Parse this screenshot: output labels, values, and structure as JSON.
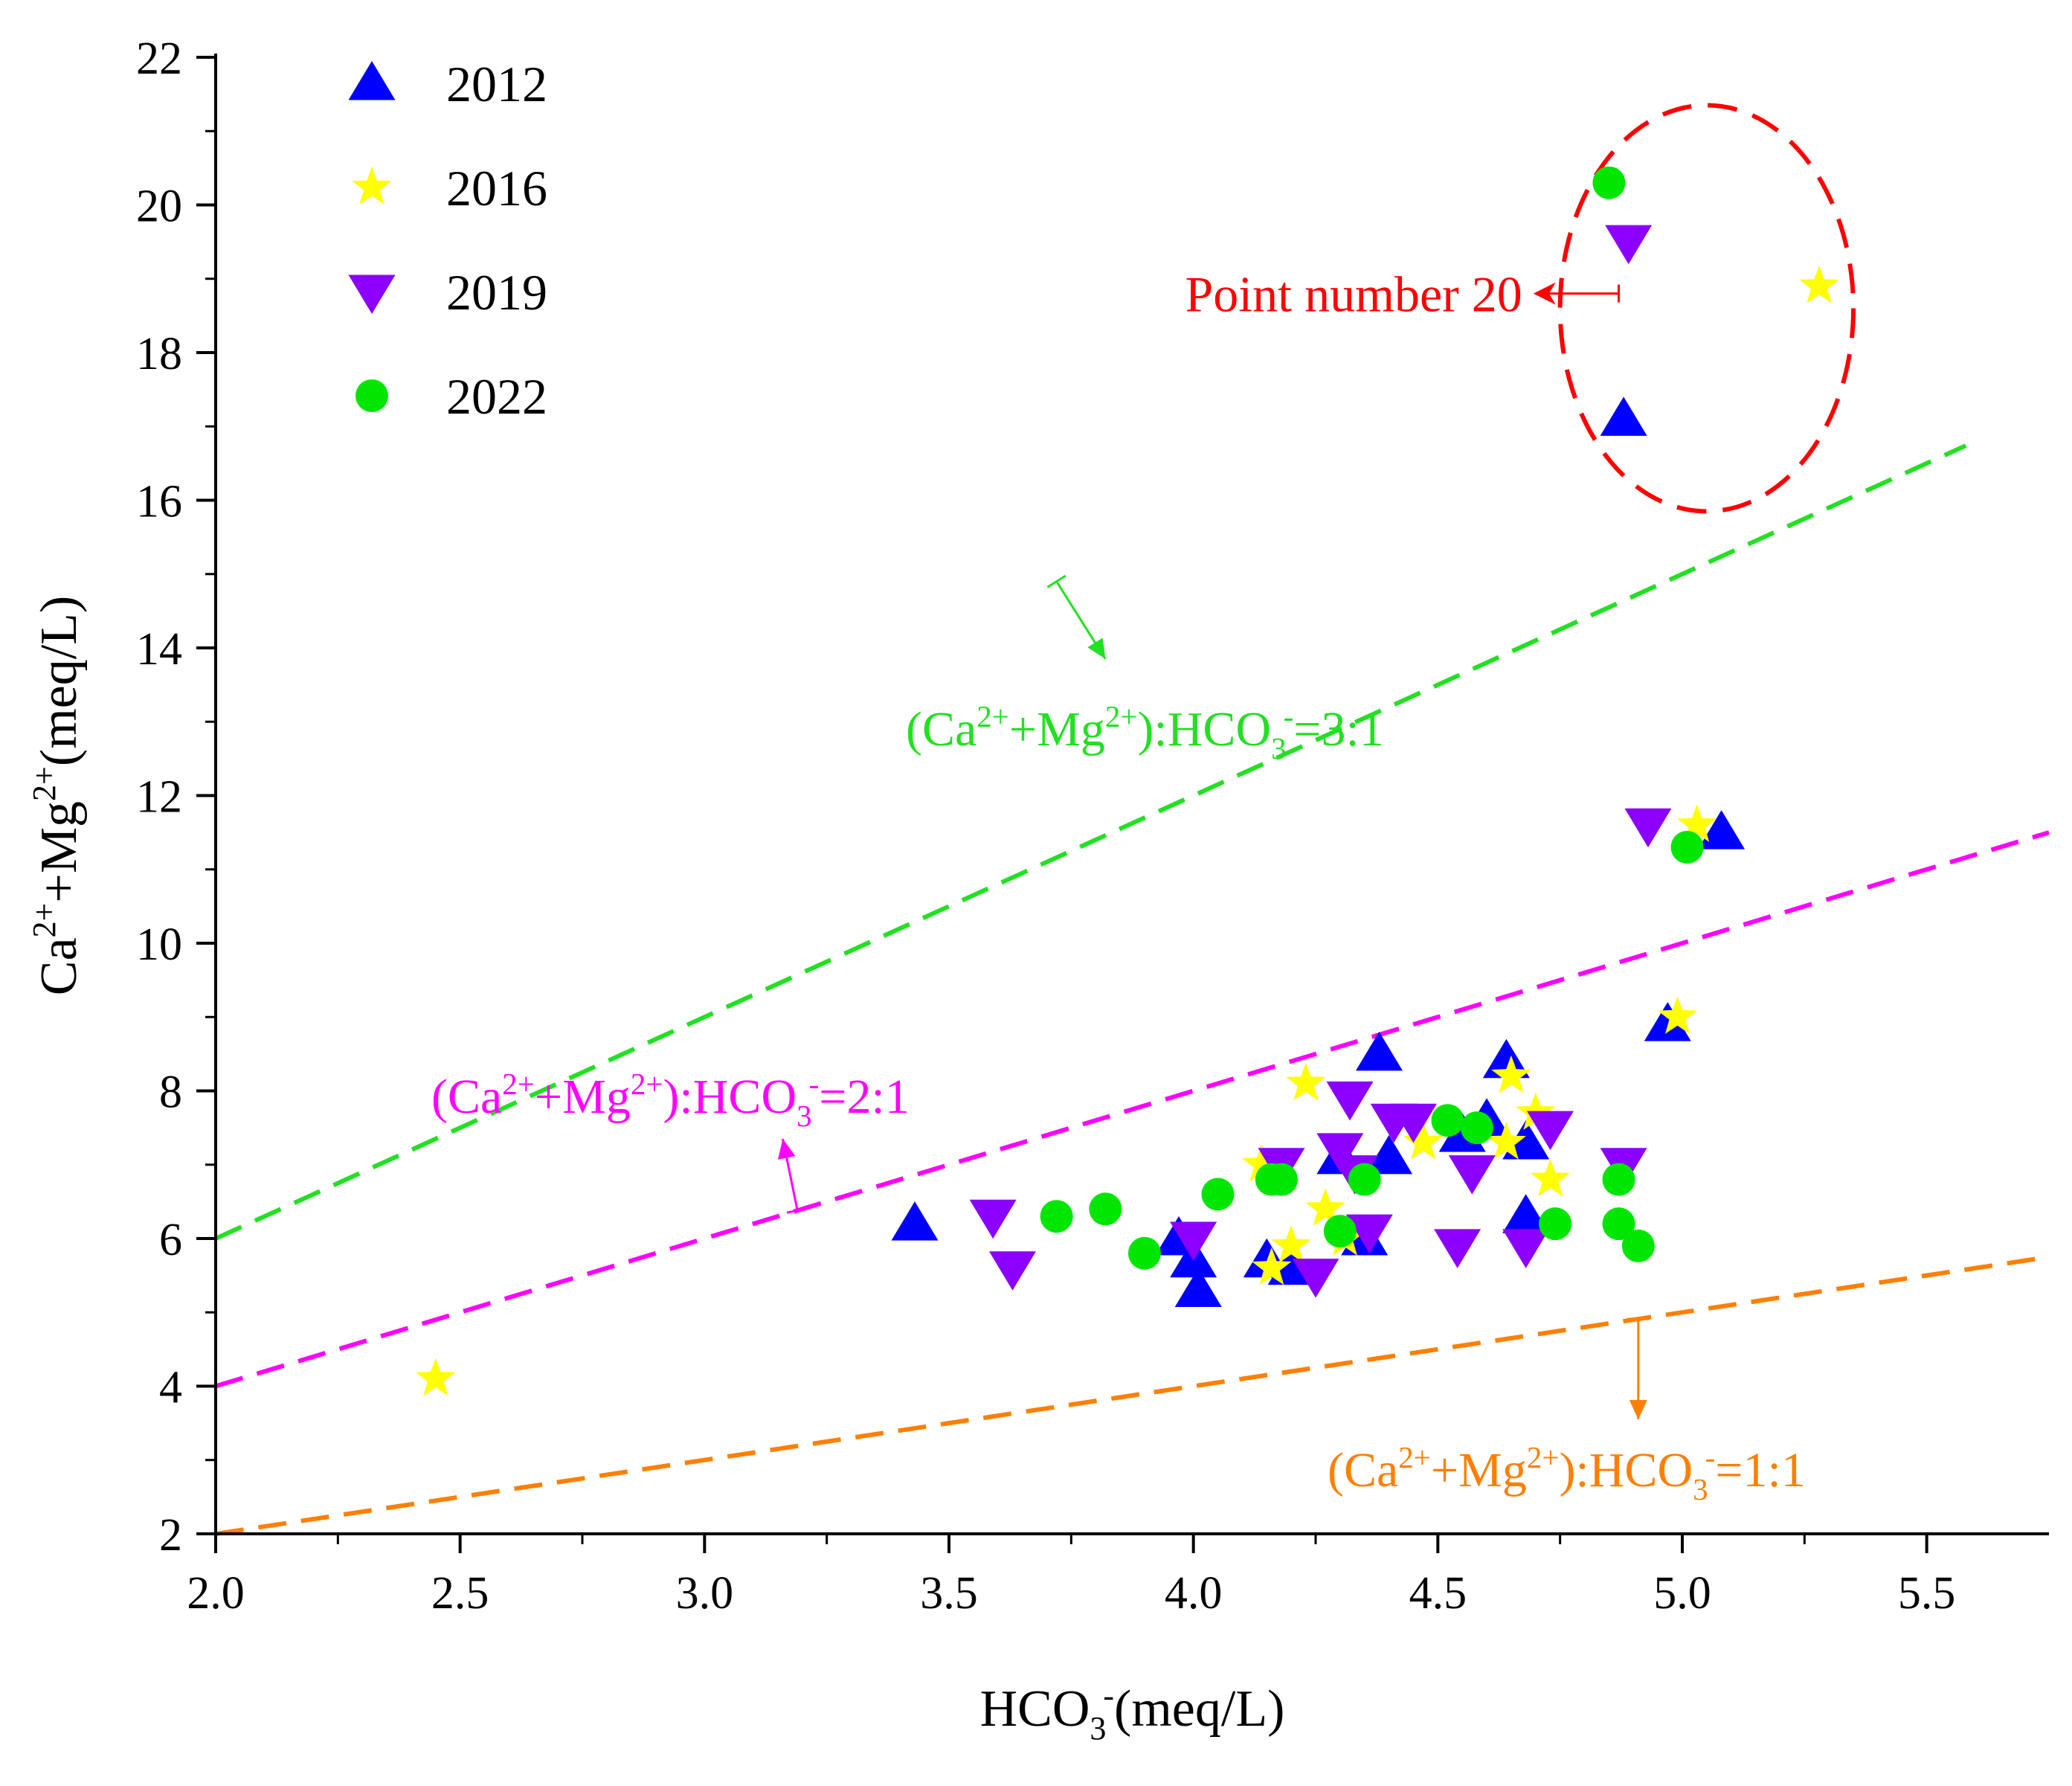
{
  "chart_data": {
    "type": "scatter",
    "xlabel": {
      "base": "HCO",
      "sub": "3",
      "sup": "-",
      "rest": "(meq/L)"
    },
    "ylabel": {
      "ca": "Ca",
      "ca_sup": "2+",
      "plus": "+Mg",
      "mg_sup": "2+",
      "rest": "(meq/L)"
    },
    "xlim": [
      2.0,
      5.75
    ],
    "ylim": [
      2,
      22
    ],
    "x_ticks": [
      2.0,
      2.5,
      3.0,
      3.5,
      4.0,
      4.5,
      5.0,
      5.5
    ],
    "x_tick_labels": [
      "2.0",
      "2.5",
      "3.0",
      "3.5",
      "4.0",
      "4.5",
      "5.0",
      "5.5"
    ],
    "y_ticks": [
      2,
      4,
      6,
      8,
      10,
      12,
      14,
      16,
      18,
      20,
      22
    ],
    "y_tick_labels": [
      "2",
      "4",
      "6",
      "8",
      "10",
      "12",
      "14",
      "16",
      "18",
      "20",
      "22"
    ],
    "legend_position": "top-left",
    "series": [
      {
        "name": "2012",
        "marker": "triangle-up",
        "color": "#0000ff",
        "points": [
          [
            3.43,
            6.2
          ],
          [
            3.97,
            6.0
          ],
          [
            4.0,
            5.7
          ],
          [
            4.01,
            5.3
          ],
          [
            4.15,
            5.7
          ],
          [
            4.2,
            5.6
          ],
          [
            4.3,
            7.1
          ],
          [
            4.35,
            6.0
          ],
          [
            4.38,
            8.5
          ],
          [
            4.4,
            7.1
          ],
          [
            4.55,
            7.4
          ],
          [
            4.6,
            7.6
          ],
          [
            4.64,
            8.4
          ],
          [
            4.68,
            7.3
          ],
          [
            4.68,
            6.3
          ],
          [
            4.88,
            17.1
          ],
          [
            4.97,
            8.9
          ],
          [
            5.08,
            11.5
          ]
        ]
      },
      {
        "name": "2016",
        "marker": "star",
        "color": "#ffff00",
        "points": [
          [
            2.45,
            4.1
          ],
          [
            4.14,
            7.0
          ],
          [
            4.16,
            5.6
          ],
          [
            4.2,
            5.9
          ],
          [
            4.23,
            8.1
          ],
          [
            4.27,
            6.4
          ],
          [
            4.31,
            6.0
          ],
          [
            4.47,
            7.3
          ],
          [
            4.64,
            7.3
          ],
          [
            4.65,
            8.2
          ],
          [
            4.7,
            7.7
          ],
          [
            4.73,
            6.8
          ],
          [
            4.99,
            9.0
          ],
          [
            5.03,
            11.6
          ],
          [
            5.28,
            18.9
          ]
        ]
      },
      {
        "name": "2019",
        "marker": "triangle-down",
        "color": "#8b00ff",
        "points": [
          [
            3.59,
            6.3
          ],
          [
            3.63,
            5.6
          ],
          [
            4.0,
            6.0
          ],
          [
            4.18,
            7.0
          ],
          [
            4.25,
            5.5
          ],
          [
            4.3,
            7.2
          ],
          [
            4.32,
            7.9
          ],
          [
            4.33,
            6.9
          ],
          [
            4.36,
            6.1
          ],
          [
            4.41,
            7.6
          ],
          [
            4.45,
            7.6
          ],
          [
            4.54,
            5.9
          ],
          [
            4.57,
            6.9
          ],
          [
            4.68,
            5.9
          ],
          [
            4.73,
            7.5
          ],
          [
            4.88,
            7.0
          ],
          [
            4.89,
            19.5
          ],
          [
            4.93,
            11.6
          ]
        ]
      },
      {
        "name": "2022",
        "marker": "circle",
        "color": "#00e600",
        "points": [
          [
            3.72,
            6.3
          ],
          [
            3.82,
            6.4
          ],
          [
            3.9,
            5.8
          ],
          [
            4.05,
            6.6
          ],
          [
            4.16,
            6.8
          ],
          [
            4.18,
            6.8
          ],
          [
            4.3,
            6.1
          ],
          [
            4.35,
            6.8
          ],
          [
            4.52,
            7.6
          ],
          [
            4.58,
            7.5
          ],
          [
            4.74,
            6.2
          ],
          [
            4.85,
            20.3
          ],
          [
            4.87,
            6.8
          ],
          [
            4.87,
            6.2
          ],
          [
            4.91,
            5.9
          ],
          [
            5.01,
            11.3
          ]
        ]
      }
    ],
    "reference_lines": [
      {
        "name": "3:1 line",
        "slope": 3,
        "color": "#22e022",
        "x_range": [
          2.0,
          5.58
        ],
        "label_parts": [
          "(Ca",
          "2+",
          "+Mg",
          "2+",
          "):HCO",
          "3",
          "-",
          "=3:1"
        ],
        "arrow_from": [
          3.72,
          14.9
        ],
        "arrow_to": [
          3.82,
          13.85
        ]
      },
      {
        "name": "2:1 line",
        "slope": 2,
        "color": "#ff00ff",
        "x_range": [
          2.0,
          5.75
        ],
        "label_parts": [
          "(Ca",
          "2+",
          "+Mg",
          "2+",
          "):HCO",
          "3",
          "-",
          "=2:1"
        ],
        "arrow_from": [
          3.19,
          6.38
        ],
        "arrow_to": [
          3.16,
          7.35
        ]
      },
      {
        "name": "1:1 line",
        "slope": 1,
        "color": "#ff7f00",
        "x_range": [
          2.0,
          5.75
        ],
        "label_parts": [
          "(Ca",
          "2+",
          "+Mg",
          "2+",
          "):HCO",
          "3",
          "-",
          "=1:1"
        ],
        "arrow_from": [
          4.91,
          4.91
        ],
        "arrow_to": [
          4.91,
          3.55
        ]
      }
    ],
    "annotation": {
      "text": "Point number 20",
      "color": "#ff0000",
      "ellipse_center": [
        5.05,
        18.6
      ],
      "ellipse_radius_x": 0.3,
      "ellipse_radius_y": 2.75,
      "arrow_from": [
        4.87,
        18.8
      ],
      "arrow_to": [
        4.7,
        18.8
      ]
    }
  }
}
